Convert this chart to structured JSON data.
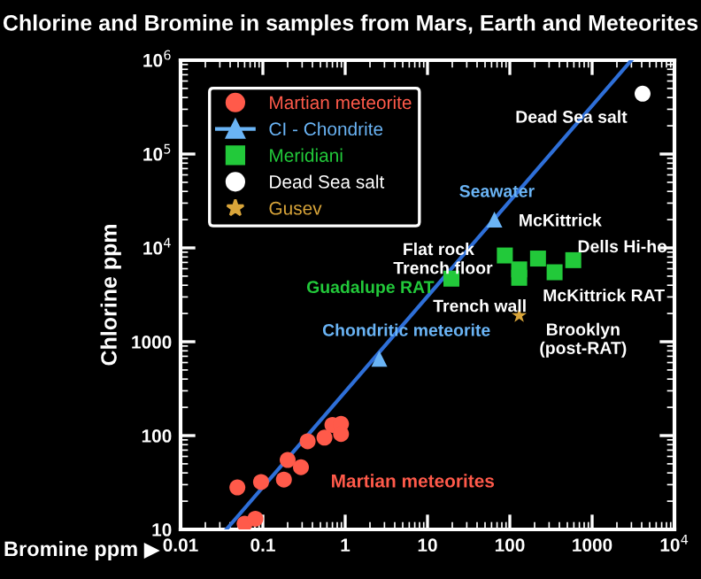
{
  "chart_data": {
    "type": "scatter",
    "title": "Chlorine and Bromine in samples from Mars, Earth and Meteorites",
    "xlabel": "Bromine ppm ▶",
    "ylabel": "Chlorine ppm",
    "log": "xy",
    "xlim": [
      0.01,
      10000
    ],
    "ylim": [
      10,
      1000000
    ],
    "xticks": [
      0.01,
      0.1,
      1,
      10,
      100,
      1000,
      {
        "value": 10000,
        "label": "10$^{4}$"
      }
    ],
    "yticks": [
      10,
      100,
      1000,
      {
        "value": 10000,
        "label": "10$^{4}$"
      },
      {
        "value": 100000,
        "label": "10$^{5}$"
      },
      {
        "value": 1000000,
        "label": "10$^{6}$"
      }
    ],
    "legend": "top left",
    "grid": false,
    "series": [
      {
        "name": "Martian meteorite",
        "color": "#ff5a4a",
        "marker": "circle",
        "x": [
          0.049,
          0.095,
          0.06,
          0.081,
          0.18,
          0.2,
          0.29,
          0.35,
          0.56,
          0.7,
          0.89,
          0.89
        ],
        "values": [
          28,
          32,
          11.5,
          13,
          34,
          55,
          46,
          87,
          95,
          130,
          133,
          104
        ]
      },
      {
        "name": "CI - Chondrite",
        "color": "#6ab4f5",
        "marker": "triangle",
        "x": [
          2.6,
          65
        ],
        "values": [
          660,
          20000
        ],
        "value_labels": [
          "Chondritic meteorite",
          "Seawater"
        ]
      },
      {
        "type": "line",
        "color": "#2e6fd8",
        "marker": "none",
        "line_style": "solid",
        "x": [
          0.036,
          3000
        ],
        "values": [
          10,
          1000000
        ]
      },
      {
        "name": "Meridiani",
        "color": "#22c93a",
        "marker": "square",
        "x": [
          19.5,
          87,
          130,
          130,
          220,
          350,
          590
        ],
        "values": [
          4700,
          8300,
          5900,
          4800,
          7700,
          5500,
          7400
        ],
        "value_labels": [
          "Guadalupe RAT",
          "Flat rock",
          "Trench floor",
          "Trench wall",
          "McKittrick",
          "McKittrick RAT",
          "Dells Hi-ho"
        ]
      },
      {
        "name": "Dead Sea salt",
        "color": "#ffffff",
        "marker": "circle",
        "x": [
          4100
        ],
        "values": [
          440000
        ],
        "value_labels": [
          "Dead Sea salt"
        ]
      },
      {
        "name": "Gusev",
        "color": "#d9a53a",
        "marker": "star",
        "x": [
          130
        ],
        "values": [
          1900
        ],
        "value_labels": [
          "Brooklyn\n(post-RAT)"
        ]
      }
    ],
    "annotations": [
      "Martian meteorites"
    ]
  }
}
